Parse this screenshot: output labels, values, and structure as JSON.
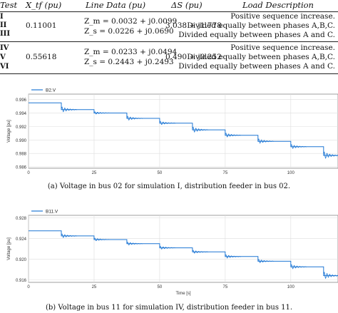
{
  "table": {
    "headers": {
      "test": "Test",
      "xtf": "X_tf (pu)",
      "line": "Line Data (pu)",
      "ds": "ΔS (pu)",
      "load": "Load Description"
    },
    "groups": [
      {
        "tests": [
          "I",
          "II",
          "III"
        ],
        "xtf": "0.11001",
        "zm": "Z_m = 0.0032 + j0.0099",
        "zs": "Z_s = 0.0226 + j0.0690",
        "ds": "3.038 + j1.778",
        "load": [
          "Positive sequence increase.",
          "Divided equally between phases A,B,C.",
          "Divided equally between phases A and C."
        ]
      },
      {
        "tests": [
          "IV",
          "V",
          "VI"
        ],
        "xtf": "0.55618",
        "zm": "Z_m = 0.0233 + j0.0494",
        "zs": "Z_s = 0.2443 + j0.2493",
        "ds": "0.490 + j0.252",
        "load": [
          "Positive sequence increase.",
          "Divided equally between phases A,B,C.",
          "Divided equally between phases A and C."
        ]
      }
    ]
  },
  "chart_data": [
    {
      "type": "line",
      "series": [
        {
          "name": "B2.V",
          "color": "#1f77d4"
        }
      ],
      "x": [
        0,
        12.5,
        12.5,
        25,
        25,
        37.5,
        37.5,
        50,
        50,
        62.5,
        62.5,
        75,
        75,
        87.5,
        87.5,
        100,
        100,
        112.5,
        112.5,
        118
      ],
      "y": [
        0.9955,
        0.9955,
        0.9945,
        0.9945,
        0.994,
        0.994,
        0.9932,
        0.9932,
        0.9925,
        0.9925,
        0.9915,
        0.9915,
        0.9907,
        0.9907,
        0.9898,
        0.9898,
        0.989,
        0.989,
        0.9877,
        0.9877
      ],
      "ylabel": "Voltage [pu]",
      "yticks": [
        "0.986",
        "0.988",
        "0.990",
        "0.992",
        "0.994",
        "0.996"
      ],
      "xticks": [
        "0",
        "25",
        "50",
        "75",
        "100"
      ],
      "xlim": [
        0,
        118
      ],
      "ylim": [
        0.9858,
        0.9968
      ],
      "caption": "(a)  Voltage in bus 02 for simulation I, distribution feeder in bus 02."
    },
    {
      "type": "line",
      "series": [
        {
          "name": "B11.V",
          "color": "#1f77d4"
        }
      ],
      "x": [
        0,
        12.5,
        12.5,
        25,
        25,
        37.5,
        37.5,
        50,
        50,
        62.5,
        62.5,
        75,
        75,
        87.5,
        87.5,
        100,
        100,
        112.5,
        112.5,
        118
      ],
      "y": [
        0.9255,
        0.9255,
        0.9245,
        0.9245,
        0.9238,
        0.9238,
        0.923,
        0.923,
        0.9222,
        0.9222,
        0.9214,
        0.9214,
        0.9205,
        0.9205,
        0.9196,
        0.9196,
        0.9185,
        0.9185,
        0.9168,
        0.9168
      ],
      "ylabel": "Voltage [pu]",
      "xlabel": "Time [s]",
      "yticks": [
        "0.916",
        "0.920",
        "0.924",
        "0.928"
      ],
      "xticks": [
        "0",
        "25",
        "50",
        "75",
        "100"
      ],
      "xlim": [
        0,
        118
      ],
      "ylim": [
        0.9155,
        0.9285
      ],
      "caption": "(b)  Voltage in bus 11 for simulation IV, distribution feeder in bus 11."
    }
  ]
}
